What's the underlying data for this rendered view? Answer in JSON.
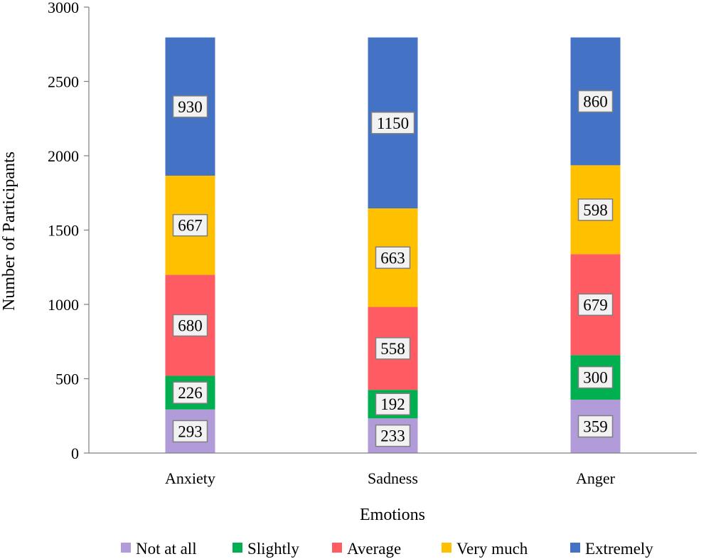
{
  "chart_data": {
    "type": "bar",
    "stacked": true,
    "categories": [
      "Anxiety",
      "Sadness",
      "Anger"
    ],
    "series": [
      {
        "name": "Not at all",
        "color": "#b19cd9",
        "values": [
          293,
          233,
          359
        ]
      },
      {
        "name": "Slightly",
        "color": "#00b050",
        "values": [
          226,
          192,
          300
        ]
      },
      {
        "name": "Average",
        "color": "#fe5b63",
        "values": [
          680,
          558,
          679
        ]
      },
      {
        "name": "Very much",
        "color": "#ffc000",
        "values": [
          667,
          663,
          598
        ]
      },
      {
        "name": "Extremely",
        "color": "#4472c4",
        "values": [
          930,
          1150,
          860
        ]
      }
    ],
    "xlabel": "Emotions",
    "ylabel": "Number of Participants",
    "ylim": [
      0,
      3000
    ],
    "yticks": [
      0,
      500,
      1000,
      1500,
      2000,
      2500,
      3000
    ],
    "grid": false,
    "legend_position": "bottom"
  }
}
